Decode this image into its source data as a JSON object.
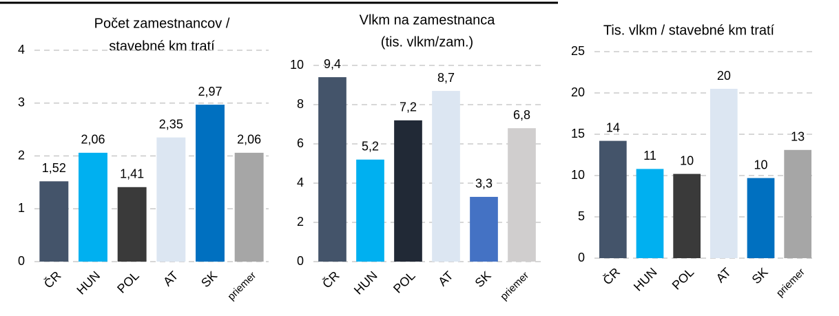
{
  "chart_data": [
    {
      "type": "bar",
      "title": [
        "Počet zamestnancov /",
        "stavebné km tratí"
      ],
      "categories": [
        "ČR",
        "HUN",
        "POL",
        "AT",
        "SK",
        "priemer"
      ],
      "values": [
        1.52,
        2.06,
        1.41,
        2.35,
        2.97,
        2.06
      ],
      "value_labels": [
        "1,52",
        "2,06",
        "1,41",
        "2,35",
        "2,97",
        "2,06"
      ],
      "colors": [
        "#44546a",
        "#00b0f0",
        "#3a3a3a",
        "#dce6f2",
        "#0070c0",
        "#a6a6a6"
      ],
      "ylim": [
        0,
        4
      ],
      "yticks": [
        0,
        1,
        2,
        3,
        4
      ],
      "grid": true
    },
    {
      "type": "bar",
      "title": [
        "Vlkm na zamestnanca",
        "(tis. vlkm/zam.)"
      ],
      "categories": [
        "ČR",
        "HUN",
        "POL",
        "AT",
        "SK",
        "priemer"
      ],
      "values": [
        9.4,
        5.2,
        7.2,
        8.7,
        3.3,
        6.8
      ],
      "value_labels": [
        "9,4",
        "5,2",
        "7,2",
        "8,7",
        "3,3",
        "6,8"
      ],
      "colors": [
        "#44546a",
        "#00b0f0",
        "#212936",
        "#dce6f2",
        "#4472c4",
        "#d0cece"
      ],
      "ylim": [
        0,
        10
      ],
      "yticks": [
        0,
        2,
        4,
        6,
        8,
        10
      ],
      "grid": true
    },
    {
      "type": "bar",
      "title": [
        "Tis. vlkm / stavebné km tratí"
      ],
      "categories": [
        "ČR",
        "HUN",
        "POL",
        "AT",
        "SK",
        "priemer"
      ],
      "values": [
        14.2,
        10.8,
        10.2,
        20.5,
        9.7,
        13.1
      ],
      "value_labels": [
        "14",
        "11",
        "10",
        "20",
        "10",
        "13"
      ],
      "colors": [
        "#44546a",
        "#00b0f0",
        "#3a3a3a",
        "#dce6f2",
        "#0070c0",
        "#a6a6a6"
      ],
      "ylim": [
        0,
        25
      ],
      "yticks": [
        0,
        5,
        10,
        15,
        20,
        25
      ],
      "grid": true
    }
  ]
}
